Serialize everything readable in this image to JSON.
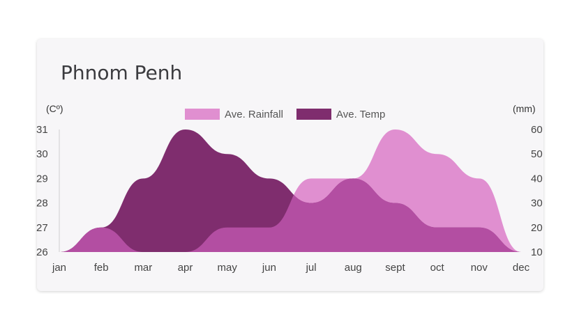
{
  "chart_data": {
    "type": "area",
    "title": "Phnom Penh",
    "categories": [
      "jan",
      "feb",
      "mar",
      "apr",
      "may",
      "jun",
      "jul",
      "aug",
      "sept",
      "oct",
      "nov",
      "dec"
    ],
    "left_axis": {
      "label": "(Cº)",
      "ticks": [
        26,
        27,
        28,
        29,
        30,
        31
      ],
      "ylim": [
        26,
        31
      ]
    },
    "right_axis": {
      "label": "(mm)",
      "ticks": [
        10,
        20,
        30,
        40,
        50,
        60
      ],
      "ylim": [
        10,
        60
      ]
    },
    "series": [
      {
        "name": "Ave. Rainfall",
        "axis": "right",
        "color": "#e08fd0",
        "values": [
          10,
          20,
          10,
          10,
          20,
          20,
          40,
          40,
          60,
          50,
          40,
          10
        ]
      },
      {
        "name": "Ave. Temp",
        "axis": "left",
        "color": "#7f2d6e",
        "values": [
          26,
          27,
          29,
          31,
          30,
          29,
          28,
          29,
          28,
          27,
          27,
          26
        ]
      }
    ],
    "overlap_color": "#b34ea2",
    "grid": false,
    "legend": "top-center"
  }
}
